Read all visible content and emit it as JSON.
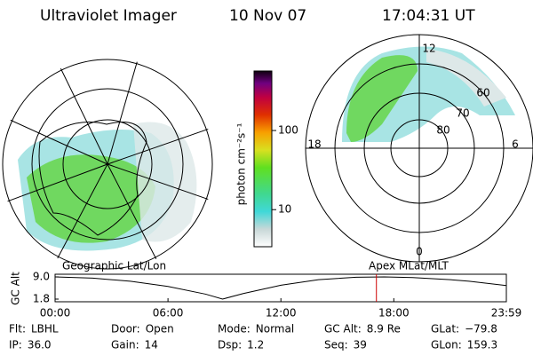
{
  "header": {
    "instrument": "Ultraviolet Imager",
    "date": "10 Nov 07",
    "time": "17:04:31 UT"
  },
  "colorbar": {
    "label": "photon cm⁻²s⁻¹",
    "log_scale": true,
    "ylim": [
      3.4,
      565
    ],
    "yticks": [
      10,
      100
    ]
  },
  "geo_map": {
    "caption": "Geographic Lat/Lon"
  },
  "polar_map": {
    "caption": "Apex MLat/MLT",
    "mlt_labels": [
      "12",
      "6",
      "0",
      "18"
    ],
    "mlat_labels": [
      "60",
      "70",
      "80"
    ]
  },
  "altitude_chart": {
    "type": "line",
    "ylabel": "GC Alt",
    "color": "#000000",
    "marker_color": "#cc0000",
    "ylim": [
      1.8,
      9.0
    ],
    "yticks": [
      {
        "value": 9.0,
        "label": "9.0"
      },
      {
        "value": 1.8,
        "label": "1.8"
      }
    ],
    "xlim": [
      0,
      23.98
    ],
    "xticks": [
      {
        "value": 0,
        "label": "00:00"
      },
      {
        "value": 6,
        "label": "06:00"
      },
      {
        "value": 12,
        "label": "12:00"
      },
      {
        "value": 18,
        "label": "18:00"
      },
      {
        "value": 23.98,
        "label": "23:59"
      }
    ],
    "x": [
      0,
      2,
      4,
      6,
      8,
      8.9,
      10,
      12,
      14,
      16,
      17.5,
      19,
      21,
      22,
      23.98
    ],
    "values": [
      9.0,
      8.6,
      7.6,
      5.9,
      3.4,
      1.8,
      3.6,
      6.3,
      8.1,
      8.9,
      9.0,
      8.8,
      8.1,
      7.6,
      6.2
    ],
    "marker_x": 17.075
  },
  "footer": [
    [
      {
        "label": "Flt:",
        "value": "LBHL"
      },
      {
        "label": "Door:",
        "value": "Open"
      },
      {
        "label": "Mode:",
        "value": "Normal"
      },
      {
        "label": "GC Alt:",
        "value": "8.9 Re"
      },
      {
        "label": "GLat:",
        "value": "−79.8"
      }
    ],
    [
      {
        "label": "IP:",
        "value": "36.0"
      },
      {
        "label": "Gain:",
        "value": "14"
      },
      {
        "label": "Dsp:",
        "value": "1.2"
      },
      {
        "label": "Seq:",
        "value": "39"
      },
      {
        "label": "GLon:",
        "value": "159.3"
      }
    ]
  ]
}
